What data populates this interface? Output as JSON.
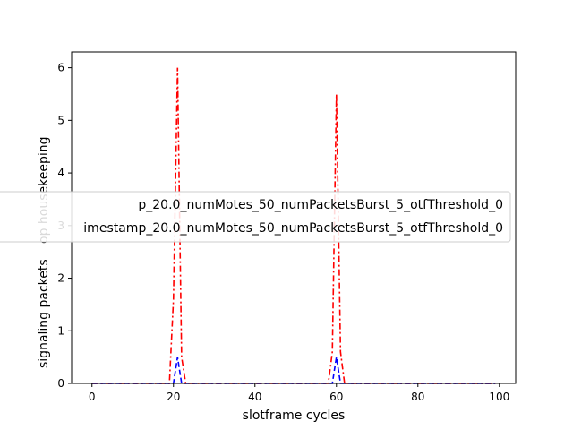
{
  "chart_data": {
    "type": "line",
    "xlabel": "slotframe cycles",
    "ylabel": "signaling packets",
    "ylabel_visible_tail": "op housekeeping",
    "xlim": [
      -5,
      104
    ],
    "ylim": [
      0,
      6.3
    ],
    "xticks": [
      0,
      20,
      40,
      60,
      80,
      100
    ],
    "yticks": [
      0,
      1,
      2,
      3,
      4,
      5,
      6
    ],
    "grid": false,
    "legend_position": "center-left",
    "series": [
      {
        "name": "p_20.0_numMotes_50_numPacketsBurst_5_otfThreshold_0",
        "color": "#ff0000",
        "linestyle": "dashdot",
        "points": [
          [
            0,
            0
          ],
          [
            19,
            0
          ],
          [
            20,
            1.6
          ],
          [
            21,
            6.0
          ],
          [
            22,
            0.5
          ],
          [
            23,
            0
          ],
          [
            58,
            0
          ],
          [
            59,
            0.6
          ],
          [
            60,
            5.5
          ],
          [
            61,
            0.6
          ],
          [
            62,
            0
          ],
          [
            99,
            0
          ]
        ]
      },
      {
        "name": "imestamp_20.0_numMotes_50_numPacketsBurst_5_otfThreshold_0",
        "color": "#0000ff",
        "linestyle": "dashed",
        "points": [
          [
            0,
            0
          ],
          [
            20,
            0
          ],
          [
            21,
            0.5
          ],
          [
            22,
            0
          ],
          [
            59,
            0
          ],
          [
            60,
            0.5
          ],
          [
            61,
            0
          ],
          [
            99,
            0
          ]
        ]
      }
    ]
  }
}
